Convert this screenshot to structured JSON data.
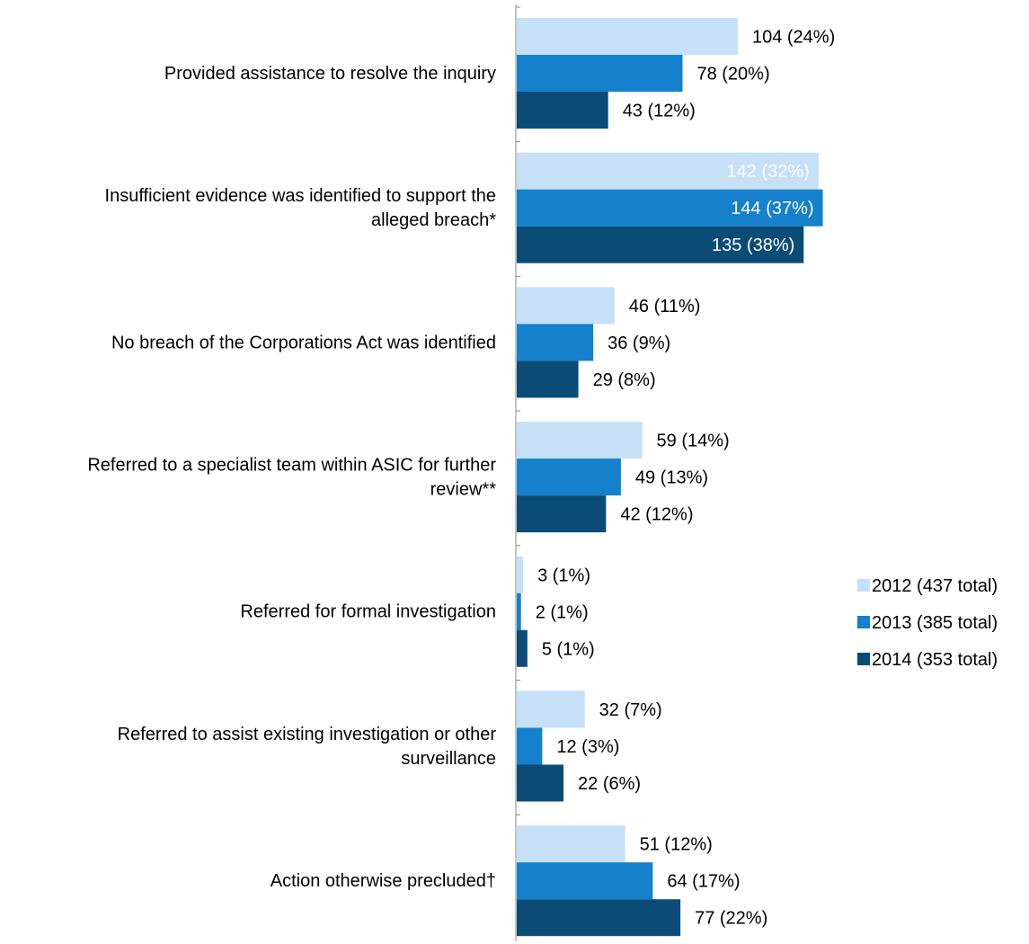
{
  "chart_data": {
    "type": "bar",
    "orientation": "horizontal",
    "categories": [
      [
        "Provided assistance to resolve the inquiry"
      ],
      [
        "Insufficient evidence was identified to support the",
        "alleged breach*"
      ],
      [
        "No breach of the Corporations Act was identified"
      ],
      [
        "Referred to a specialist team within ASIC for further",
        "review**"
      ],
      [
        "Referred for formal investigation"
      ],
      [
        "Referred to assist existing investigation or other",
        "surveillance"
      ],
      [
        "Action otherwise precluded†"
      ]
    ],
    "series": [
      {
        "name": "2012 (437 total)",
        "color": "#c5e0f7",
        "values": [
          104,
          142,
          46,
          59,
          3,
          32,
          51
        ],
        "labels": [
          "104 (24%)",
          "142 (32%)",
          "46 (11%)",
          "59 (14%)",
          "3 (1%)",
          "32 (7%)",
          "51 (12%)"
        ],
        "inside_label": [
          false,
          true,
          false,
          false,
          false,
          false,
          false
        ]
      },
      {
        "name": "2013 (385 total)",
        "color": "#1580cb",
        "values": [
          78,
          144,
          36,
          49,
          2,
          12,
          64
        ],
        "labels": [
          "78 (20%)",
          "144 (37%)",
          "36 (9%)",
          "49 (13%)",
          "2 (1%)",
          "12 (3%)",
          "64 (17%)"
        ],
        "inside_label": [
          false,
          true,
          false,
          false,
          false,
          false,
          false
        ]
      },
      {
        "name": "2014 (353 total)",
        "color": "#0b4c77",
        "values": [
          43,
          135,
          29,
          42,
          5,
          22,
          77
        ],
        "labels": [
          "43 (12%)",
          "135 (38%)",
          "29 (8%)",
          "42 (12%)",
          "5 (1%)",
          "22 (6%)",
          "77 (22%)"
        ],
        "inside_label": [
          false,
          true,
          false,
          false,
          false,
          false,
          false
        ]
      }
    ],
    "xlim": [
      0,
      150
    ],
    "grid": false,
    "legend_position": "right"
  }
}
